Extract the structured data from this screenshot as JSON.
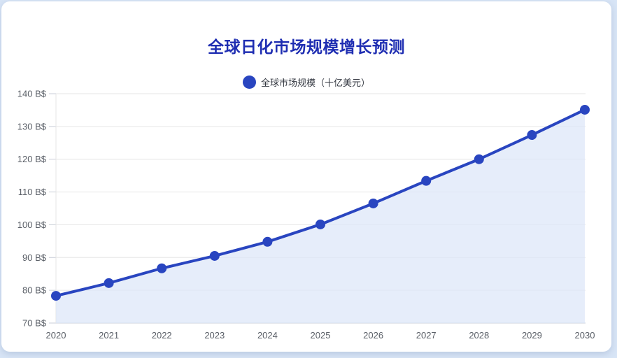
{
  "page": {
    "background_color": "#d8e5f6",
    "card_color": "#ffffff"
  },
  "header": {
    "title": "全球日化市场规模增长预测",
    "title_color": "#1f2eb2"
  },
  "legend": {
    "label": "全球市场规模（十亿美元）",
    "marker_color": "#2945c0"
  },
  "chart_data": {
    "type": "line",
    "title": "全球日化市场规模增长预测",
    "categories": [
      "2020",
      "2021",
      "2022",
      "2023",
      "2024",
      "2025",
      "2026",
      "2027",
      "2028",
      "2029",
      "2030"
    ],
    "series": [
      {
        "name": "全球市场规模（十亿美元）",
        "values": [
          78.3,
          82.2,
          86.7,
          90.5,
          94.8,
          100.1,
          106.5,
          113.4,
          120,
          127.4,
          135.1
        ]
      }
    ],
    "xlabel": "",
    "ylabel": "",
    "ylim": [
      70,
      140
    ],
    "ytick_step": 10,
    "ytick_suffix": " B$",
    "yticks": [
      "70 B$",
      "80 B$",
      "90 B$",
      "100 B$",
      "110 B$",
      "120 B$",
      "130 B$",
      "140 B$"
    ],
    "grid": "horizontal-only",
    "legend_position": "top-center",
    "line_color": "#2945c0",
    "point_color": "#2945c0",
    "area_fill_color": "#dce6f8",
    "gridline_color": "#e6e6e6",
    "axis_line_color": "#c9ced8",
    "axis_text_color": "#5b6068"
  }
}
